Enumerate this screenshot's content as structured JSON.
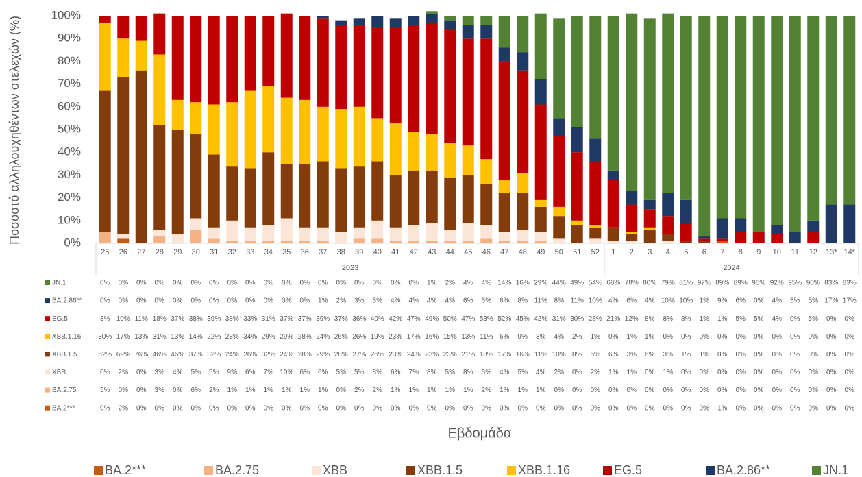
{
  "chart_data": {
    "type": "stacked_bar",
    "y_label": "Ποσοστό αλληλουχηθέντων στελεχών (%)",
    "x_label": "Εβδομάδα",
    "categories": [
      "25",
      "26",
      "27",
      "28",
      "29",
      "30",
      "31",
      "32",
      "33",
      "34",
      "35",
      "36",
      "37",
      "38",
      "39",
      "40",
      "41",
      "42",
      "43",
      "44",
      "45",
      "46",
      "47",
      "48",
      "49",
      "50",
      "51",
      "52",
      "1",
      "2",
      "3",
      "4",
      "5",
      "6",
      "7",
      "8",
      "9",
      "10",
      "11",
      "12",
      "13*",
      "14*"
    ],
    "category_groups": [
      {
        "label": "2023",
        "span": [
          0,
          27
        ]
      },
      {
        "label": "2024",
        "span": [
          28,
          41
        ]
      }
    ],
    "ylim": [
      0,
      100
    ],
    "yticks": [
      {
        "value": 0,
        "label": "0%"
      },
      {
        "value": 10,
        "label": "10%"
      },
      {
        "value": 20,
        "label": "20%"
      },
      {
        "value": 30,
        "label": "30%"
      },
      {
        "value": 40,
        "label": "40%"
      },
      {
        "value": 50,
        "label": "50%"
      },
      {
        "value": 60,
        "label": "60%"
      },
      {
        "value": 70,
        "label": "70%"
      },
      {
        "value": 80,
        "label": "80%"
      },
      {
        "value": 90,
        "label": "90%"
      },
      {
        "value": 100,
        "label": "100%"
      }
    ],
    "grid": false,
    "legend": "bottom",
    "series": [
      {
        "name": "BA.2***",
        "color": "#c55a11",
        "values": [
          0,
          2,
          0,
          0,
          0,
          0,
          0,
          0,
          0,
          0,
          0,
          0,
          0,
          0,
          0,
          0,
          0,
          0,
          0,
          0,
          0,
          0,
          0,
          0,
          0,
          0,
          0,
          0,
          0,
          0,
          0,
          0,
          0,
          0,
          1,
          0,
          0,
          0,
          0,
          0,
          0,
          0
        ],
        "value_labels": [
          "0%",
          "2%",
          "0%",
          "0%",
          "0%",
          "0%",
          "0%",
          "0%",
          "0%",
          "0%",
          "0%",
          "0%",
          "0%",
          "0%",
          "0%",
          "0%",
          "0%",
          "0%",
          "0%",
          "0%",
          "0%",
          "0%",
          "0%",
          "0%",
          "0%",
          "0%",
          "0%",
          "0%",
          "0%",
          "0%",
          "0%",
          "0%",
          "0%",
          "0%",
          "1%",
          "0%",
          "0%",
          "0%",
          "0%",
          "0%",
          "0%",
          "0%"
        ]
      },
      {
        "name": "BA.2.75",
        "color": "#f4b183",
        "values": [
          5,
          0,
          0,
          3,
          0,
          6,
          2,
          1,
          1,
          1,
          1,
          1,
          1,
          0,
          2,
          2,
          1,
          1,
          1,
          1,
          1,
          2,
          1,
          1,
          1,
          0,
          0,
          0,
          0,
          0,
          0,
          0,
          0,
          0,
          0,
          0,
          0,
          0,
          0,
          0,
          0,
          0
        ],
        "value_labels": [
          "5%",
          "0%",
          "0%",
          "3%",
          "0%",
          "6%",
          "2%",
          "1%",
          "1%",
          "1%",
          "1%",
          "1%",
          "1%",
          "0%",
          "2%",
          "2%",
          "1%",
          "1%",
          "1%",
          "1%",
          "1%",
          "2%",
          "1%",
          "1%",
          "1%",
          "0%",
          "0%",
          "0%",
          "0%",
          "0%",
          "0%",
          "0%",
          "0%",
          "0%",
          "0%",
          "0%",
          "0%",
          "0%",
          "0%",
          "0%",
          "0%",
          "0%"
        ]
      },
      {
        "name": "XBB",
        "color": "#fbe5d6",
        "values": [
          0,
          2,
          0,
          3,
          4,
          5,
          5,
          9,
          6,
          7,
          10,
          6,
          6,
          5,
          5,
          8,
          6,
          7,
          8,
          5,
          8,
          6,
          4,
          5,
          4,
          2,
          0,
          2,
          1,
          1,
          0,
          1,
          0,
          0,
          0,
          0,
          0,
          0,
          0,
          0,
          0,
          0
        ],
        "value_labels": [
          "0%",
          "2%",
          "0%",
          "3%",
          "4%",
          "5%",
          "5%",
          "9%",
          "6%",
          "7%",
          "10%",
          "6%",
          "6%",
          "5%",
          "5%",
          "8%",
          "6%",
          "7%",
          "8%",
          "5%",
          "8%",
          "6%",
          "4%",
          "5%",
          "4%",
          "2%",
          "0%",
          "2%",
          "1%",
          "1%",
          "0%",
          "1%",
          "0%",
          "0%",
          "0%",
          "0%",
          "0%",
          "0%",
          "0%",
          "0%",
          "0%",
          "0%"
        ]
      },
      {
        "name": "XBB.1.5",
        "color": "#843c0c",
        "values": [
          62,
          69,
          76,
          46,
          46,
          37,
          32,
          24,
          26,
          32,
          24,
          28,
          29,
          28,
          27,
          26,
          23,
          24,
          23,
          23,
          21,
          18,
          17,
          16,
          11,
          10,
          8,
          5,
          6,
          3,
          6,
          3,
          1,
          1,
          0,
          0,
          0,
          0,
          0,
          0,
          0,
          0
        ],
        "value_labels": [
          "62%",
          "69%",
          "76%",
          "46%",
          "46%",
          "37%",
          "32%",
          "24%",
          "26%",
          "32%",
          "24%",
          "28%",
          "29%",
          "28%",
          "27%",
          "26%",
          "23%",
          "24%",
          "23%",
          "23%",
          "21%",
          "18%",
          "17%",
          "16%",
          "11%",
          "10%",
          "8%",
          "5%",
          "6%",
          "3%",
          "6%",
          "3%",
          "1%",
          "1%",
          "0%",
          "0%",
          "0%",
          "0%",
          "0%",
          "0%",
          "0%",
          "0%"
        ]
      },
      {
        "name": "XBB.1.16",
        "color": "#ffc000",
        "values": [
          30,
          17,
          13,
          31,
          13,
          14,
          22,
          28,
          34,
          29,
          29,
          28,
          24,
          26,
          26,
          19,
          23,
          17,
          16,
          15,
          13,
          11,
          6,
          9,
          3,
          4,
          2,
          1,
          0,
          1,
          1,
          0,
          0,
          0,
          0,
          0,
          0,
          0,
          0,
          0,
          0,
          0
        ],
        "value_labels": [
          "30%",
          "17%",
          "13%",
          "31%",
          "13%",
          "14%",
          "22%",
          "28%",
          "34%",
          "29%",
          "29%",
          "28%",
          "24%",
          "26%",
          "26%",
          "19%",
          "23%",
          "17%",
          "16%",
          "15%",
          "13%",
          "11%",
          "6%",
          "9%",
          "3%",
          "4%",
          "2%",
          "1%",
          "0%",
          "1%",
          "1%",
          "0%",
          "0%",
          "0%",
          "0%",
          "0%",
          "0%",
          "0%",
          "0%",
          "0%",
          "0%",
          "0%"
        ]
      },
      {
        "name": "EG.5",
        "color": "#c00000",
        "values": [
          3,
          10,
          11,
          18,
          37,
          38,
          39,
          38,
          33,
          31,
          37,
          37,
          39,
          37,
          36,
          40,
          42,
          47,
          49,
          50,
          47,
          53,
          52,
          45,
          42,
          31,
          30,
          28,
          21,
          12,
          8,
          8,
          8,
          1,
          1,
          5,
          5,
          4,
          0,
          5,
          0,
          0
        ],
        "value_labels": [
          "3%",
          "10%",
          "11%",
          "18%",
          "37%",
          "38%",
          "39%",
          "38%",
          "33%",
          "31%",
          "37%",
          "37%",
          "39%",
          "37%",
          "36%",
          "40%",
          "42%",
          "47%",
          "49%",
          "50%",
          "47%",
          "53%",
          "52%",
          "45%",
          "42%",
          "31%",
          "30%",
          "28%",
          "21%",
          "12%",
          "8%",
          "8%",
          "8%",
          "1%",
          "1%",
          "5%",
          "5%",
          "4%",
          "0%",
          "5%",
          "0%",
          "0%"
        ]
      },
      {
        "name": "BA.2.86**",
        "color": "#203864",
        "values": [
          0,
          0,
          0,
          0,
          0,
          0,
          0,
          0,
          0,
          0,
          0,
          0,
          1,
          2,
          3,
          5,
          4,
          4,
          4,
          4,
          6,
          6,
          6,
          8,
          11,
          8,
          11,
          10,
          4,
          6,
          4,
          10,
          10,
          1,
          9,
          6,
          0,
          4,
          5,
          5,
          17,
          17
        ],
        "value_labels": [
          "0%",
          "0%",
          "0%",
          "0%",
          "0%",
          "0%",
          "0%",
          "0%",
          "0%",
          "0%",
          "0%",
          "0%",
          "1%",
          "2%",
          "3%",
          "5%",
          "4%",
          "4%",
          "4%",
          "4%",
          "6%",
          "6%",
          "6%",
          "8%",
          "11%",
          "8%",
          "11%",
          "10%",
          "4%",
          "6%",
          "4%",
          "10%",
          "10%",
          "1%",
          "9%",
          "6%",
          "0%",
          "4%",
          "5%",
          "5%",
          "17%",
          "17%"
        ]
      },
      {
        "name": "JN.1",
        "color": "#548235",
        "values": [
          0,
          0,
          0,
          0,
          0,
          0,
          0,
          0,
          0,
          0,
          0,
          0,
          0,
          0,
          0,
          0,
          0,
          0,
          1,
          2,
          4,
          4,
          14,
          16,
          29,
          44,
          49,
          54,
          68,
          78,
          80,
          79,
          81,
          97,
          89,
          89,
          95,
          92,
          95,
          90,
          83,
          83
        ],
        "value_labels": [
          "0%",
          "0%",
          "0%",
          "0%",
          "0%",
          "0%",
          "0%",
          "0%",
          "0%",
          "0%",
          "0%",
          "0%",
          "0%",
          "0%",
          "0%",
          "0%",
          "0%",
          "0%",
          "1%",
          "2%",
          "4%",
          "4%",
          "14%",
          "16%",
          "29%",
          "44%",
          "49%",
          "54%",
          "68%",
          "78%",
          "80%",
          "79%",
          "81%",
          "97%",
          "89%",
          "89%",
          "95%",
          "92%",
          "95%",
          "90%",
          "83%",
          "83%"
        ]
      }
    ]
  }
}
